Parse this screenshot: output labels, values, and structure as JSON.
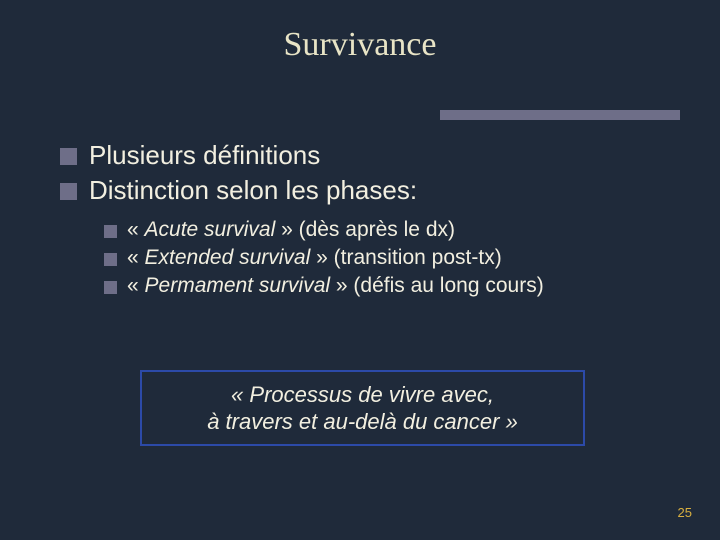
{
  "colors": {
    "background": "#1f2a3a",
    "text_title": "#e8e4c6",
    "text_body": "#f2efe0",
    "bullet": "#6e6e88",
    "accent_bar": "#6e6e88",
    "box_border": "#2c4aa8",
    "page_num": "#d9b040"
  },
  "title": "Survivance",
  "bullets": [
    {
      "text": "Plusieurs définitions"
    },
    {
      "text": "Distinction selon les phases:"
    }
  ],
  "sub_bullets": [
    {
      "prefix": "« ",
      "em": "Acute survival",
      "suffix": " » (dès après le dx)"
    },
    {
      "prefix": "« ",
      "em": "Extended survival",
      "suffix": " » (transition post-tx)"
    },
    {
      "prefix": "« ",
      "em": "Permament survival",
      "suffix": " » (défis au long cours)"
    }
  ],
  "quote_line1": "« Processus de vivre avec,",
  "quote_line2": "à travers et au-delà du cancer »",
  "page_number": "25"
}
